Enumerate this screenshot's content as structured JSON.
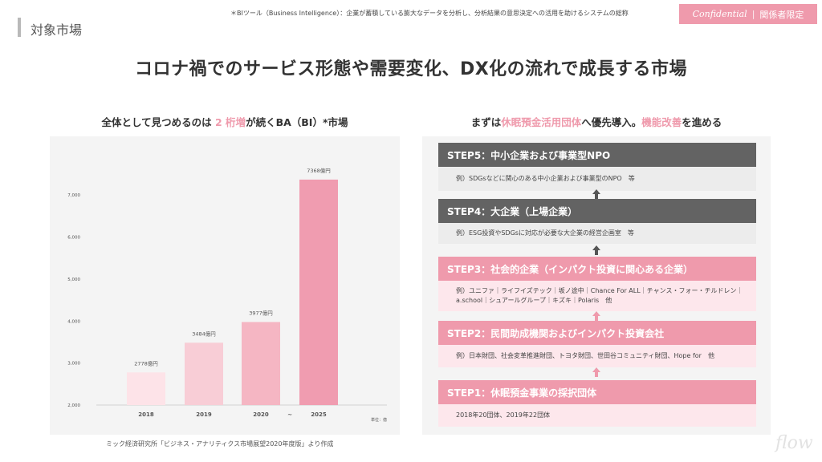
{
  "header": {
    "section_label": "対象市場",
    "footnote": "＊BIツール（Business Intelligence）：企業が蓄積している膨大なデータを分析し、分析結果の意思決定への活用を助けるシステムの総称",
    "badge_confidential": "Confidential",
    "badge_separator": "|",
    "badge_restricted": "関係者限定"
  },
  "main_title": "コロナ禍でのサービス形態や需要変化、DX化の流れで成長する市場",
  "left_subtitle": {
    "prefix": "全体として見つめるのは ",
    "highlight": "2 桁増",
    "suffix": "が続くBA（BI）*市場"
  },
  "right_subtitle": {
    "prefix": "まずは",
    "highlight1": "休眠預金活用団体",
    "middle": "へ優先導入。",
    "highlight2": "機能改善",
    "suffix": "を進める"
  },
  "chart_data": {
    "type": "bar",
    "categories": [
      "2018",
      "2019",
      "2020",
      "2025"
    ],
    "values": [
      2778,
      3484,
      3977,
      7368
    ],
    "value_labels": [
      "2778億円",
      "3484億円",
      "3977億円",
      "7368億円"
    ],
    "bar_colors": [
      "#fde3e8",
      "#f8cdd6",
      "#f5b6c3",
      "#f09cb0"
    ],
    "y_ticks": [
      2000,
      3000,
      4000,
      5000,
      6000,
      7000
    ],
    "y_tick_labels": [
      "2,000",
      "3,000",
      "4,000",
      "5,000",
      "6,000",
      "7,000"
    ],
    "ylim": [
      2000,
      7500
    ],
    "gap_marker": "~",
    "unit_label": "単位：億",
    "source": "ミック経済研究所「ビジネス・アナリティクス市場展望2020年度版」より作成"
  },
  "steps": [
    {
      "title": "STEP5：中小企業および事業型NPO",
      "body": "例）SDGsなどに関心のある中小企業および事業型のNPO　等",
      "theme": "dark"
    },
    {
      "title": "STEP4：大企業（上場企業）",
      "body": "例）ESG投資やSDGsに対応が必要な大企業の経営企画室　等",
      "theme": "dark"
    },
    {
      "title": "STEP3：社会的企業（インパクト投資に関心ある企業）",
      "body": "例）ユニファ｜ライフイズテック｜坂ノ途中｜Chance For ALL｜チャンス・フォー・チルドレン｜a.school｜シュアールグループ｜キズキ｜Polaris　他",
      "theme": "pink"
    },
    {
      "title": "STEP2：民間助成機関およびインパクト投資会社",
      "body": "例）日本財団、社会変革推進財団、トヨタ財団、世田谷コミュニティ財団、Hope for　他",
      "theme": "pink"
    },
    {
      "title": "STEP1：休眠預金事業の採択団体",
      "body": "2018年20団体、2019年22団体",
      "theme": "pink"
    }
  ],
  "colors": {
    "accent_pink": "#ef9aac",
    "dark_step": "#636363",
    "dark_arrow": "#555555"
  },
  "logo_text": "flow"
}
